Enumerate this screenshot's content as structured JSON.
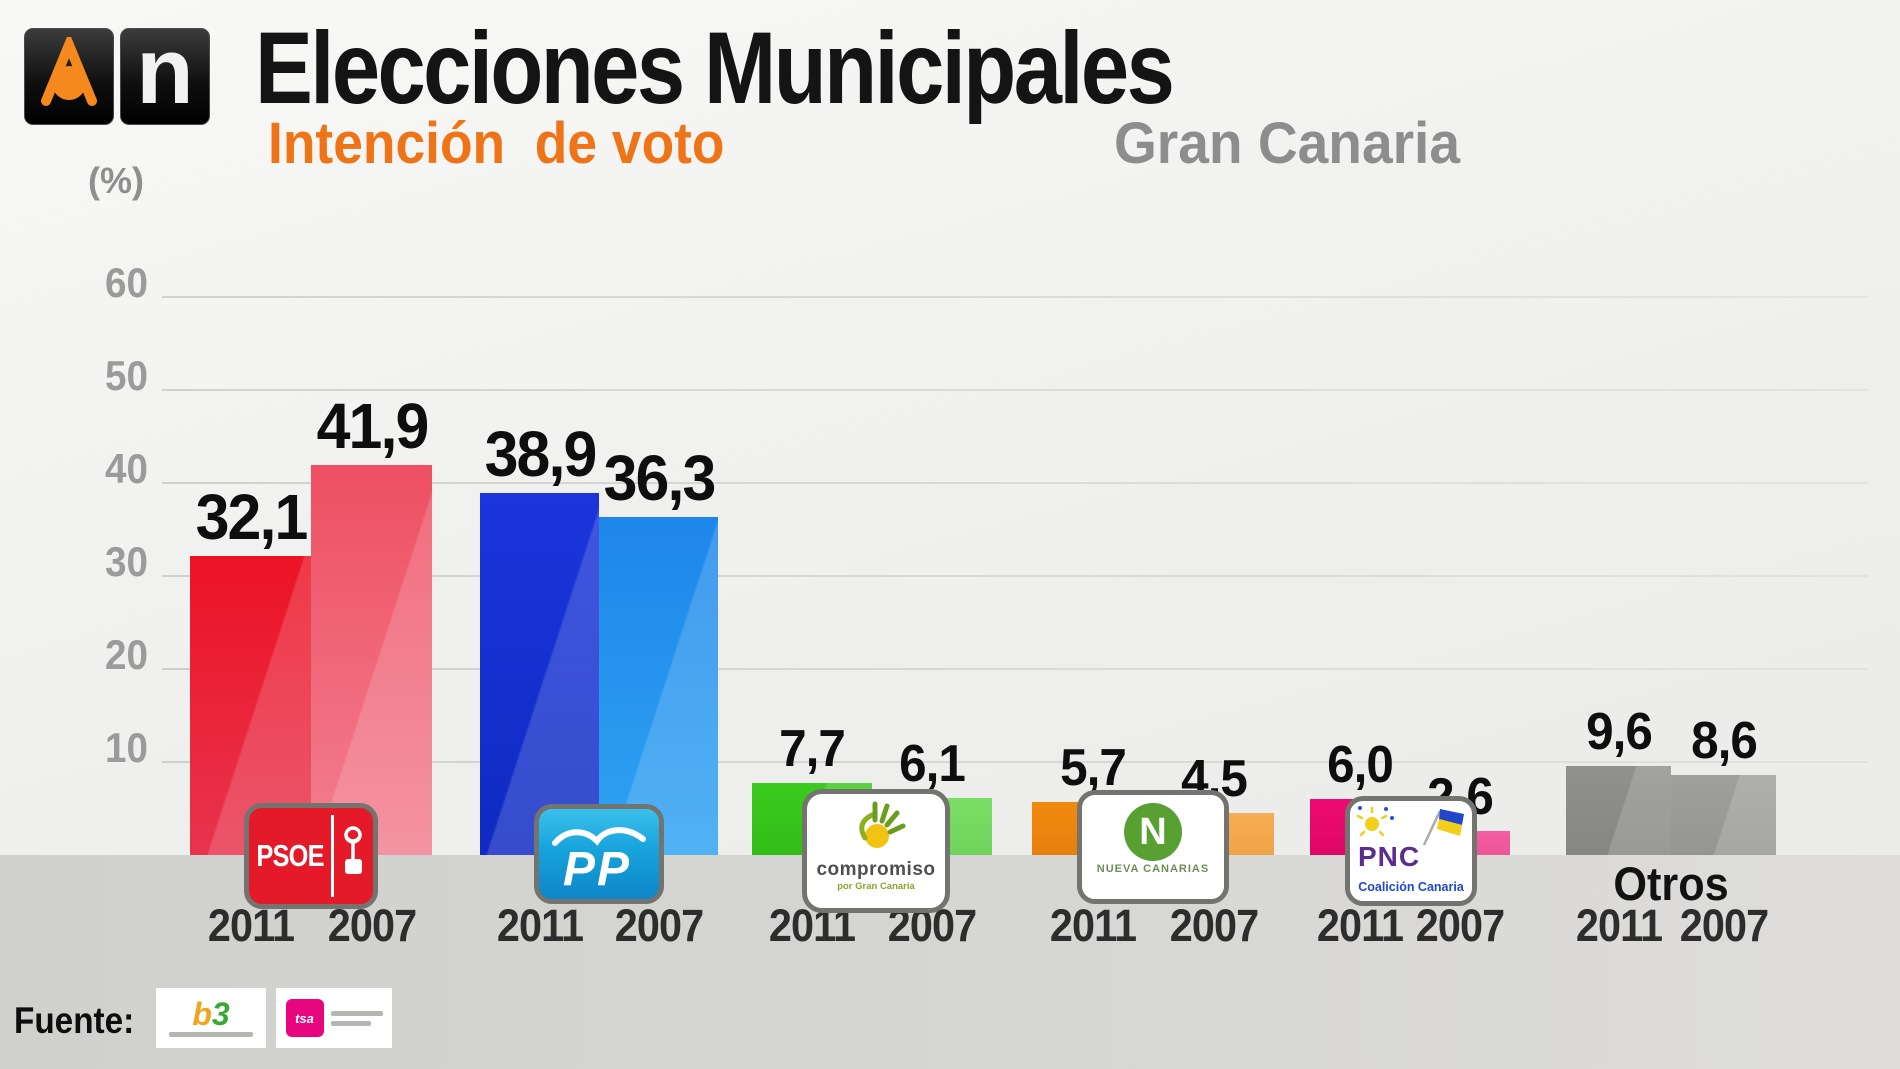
{
  "header": {
    "brand_n": "n",
    "title": "Elecciones Municipales",
    "subtitle": "Intención  de voto",
    "region": "Gran Canaria"
  },
  "chart_data": {
    "type": "bar",
    "title": "Elecciones Municipales — Intención de voto",
    "subtitle": "Gran Canaria",
    "ylabel": "(%)",
    "ylim": [
      0,
      65
    ],
    "yticks": [
      10,
      20,
      30,
      40,
      50,
      60
    ],
    "grid": true,
    "legend_position": "below-each-pair",
    "categories": [
      "PSOE",
      "PP",
      "Compromiso por Gran Canaria",
      "Nueva Canarias",
      "PNC - Coalición Canaria",
      "Otros"
    ],
    "series": [
      {
        "name": "2011",
        "values": [
          32.1,
          38.9,
          7.7,
          5.7,
          6.0,
          9.6
        ]
      },
      {
        "name": "2007",
        "values": [
          41.9,
          36.3,
          6.1,
          4.5,
          2.6,
          8.6
        ]
      }
    ]
  },
  "years": [
    "2011",
    "2007"
  ],
  "parties": [
    {
      "id": "psoe",
      "name": "PSOE",
      "values": [
        32.1,
        41.9
      ],
      "labels": [
        "32,1",
        "41,9"
      ],
      "colors": [
        [
          "#ec1325",
          "#e8344e"
        ],
        [
          "#ee4f62",
          "#f27f90"
        ]
      ],
      "logo": {
        "text": "PSOE"
      }
    },
    {
      "id": "pp",
      "name": "PP",
      "values": [
        38.9,
        36.3
      ],
      "labels": [
        "38,9",
        "36,3"
      ],
      "colors": [
        [
          "#1b35dc",
          "#0f2ac2"
        ],
        [
          "#1e86ea",
          "#2fa3f2"
        ]
      ],
      "logo": {
        "text": "PP"
      }
    },
    {
      "id": "compromiso",
      "name": "Compromiso por Gran Canaria",
      "values": [
        7.7,
        6.1
      ],
      "labels": [
        "7,7",
        "6,1"
      ],
      "colors": [
        [
          "#3bcb1d",
          "#33bd18"
        ],
        [
          "#61d747",
          "#55cc3d"
        ]
      ],
      "logo": {
        "text": "compromiso",
        "sub": "por Gran Canaria"
      }
    },
    {
      "id": "nueva-canarias",
      "name": "Nueva Canarias",
      "values": [
        5.7,
        4.5
      ],
      "labels": [
        "5,7",
        "4,5"
      ],
      "colors": [
        [
          "#f28a10",
          "#e87f0c"
        ],
        [
          "#f59d33",
          "#ef9226"
        ]
      ],
      "logo": {
        "initial": "N",
        "text": "Nueva Canarias"
      }
    },
    {
      "id": "pnc",
      "name": "PNC - Coalición Canaria",
      "values": [
        6.0,
        2.6
      ],
      "labels": [
        "6,0",
        "2,6"
      ],
      "colors": [
        [
          "#ee0a73",
          "#de0866"
        ],
        [
          "#f2408f",
          "#e83583"
        ]
      ],
      "logo": {
        "text": "PNC",
        "sub": "Coalición Canaria"
      }
    },
    {
      "id": "otros",
      "name": "Otros",
      "values": [
        9.6,
        8.6
      ],
      "labels": [
        "9,6",
        "8,6"
      ],
      "colors": [
        [
          "#90908e",
          "#868684"
        ],
        [
          "#9f9f9d",
          "#959593"
        ]
      ],
      "logo": null
    }
  ],
  "footer": {
    "label": "Fuente:",
    "sources": [
      {
        "id": "b3",
        "part1": "b",
        "part2": "3"
      },
      {
        "id": "tsa",
        "mark": "tsa"
      }
    ]
  }
}
